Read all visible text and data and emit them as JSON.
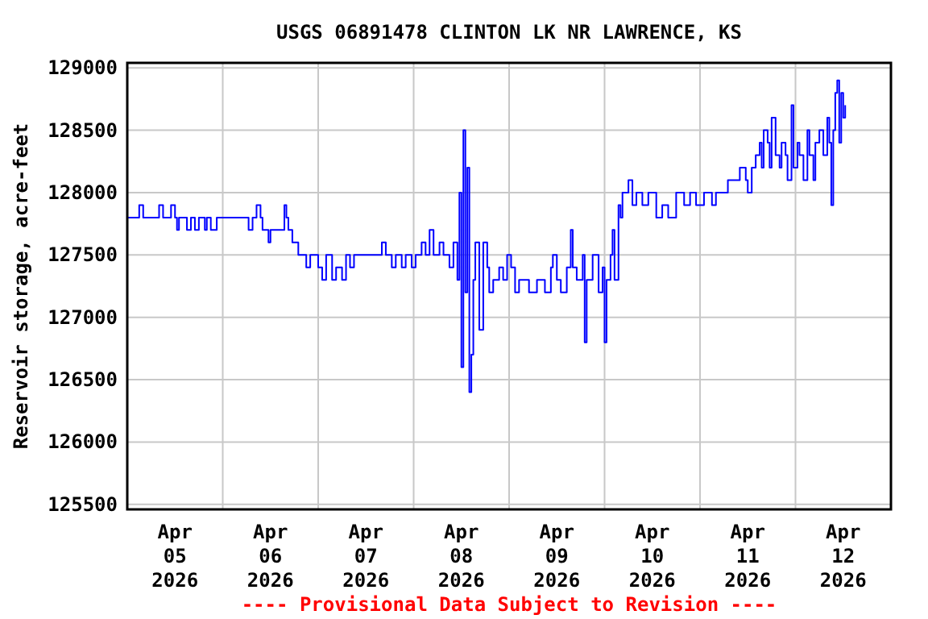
{
  "chart_data": {
    "type": "step",
    "title": "USGS 06891478 CLINTON LK NR LAWRENCE, KS",
    "ylabel": "Reservoir storage, acre-feet",
    "annotations": [
      "---- Provisional Data Subject to Revision ----"
    ],
    "grid": true,
    "xlim": [
      "2026-04-05T00:00",
      "2026-04-13T00:00"
    ],
    "xticks": [
      {
        "value": "2026-04-05T12:00",
        "label": "Apr\n05\n2026"
      },
      {
        "value": "2026-04-06T00:00",
        "label": null
      },
      {
        "value": "2026-04-06T12:00",
        "label": "Apr\n06\n2026"
      },
      {
        "value": "2026-04-07T00:00",
        "label": null
      },
      {
        "value": "2026-04-07T12:00",
        "label": "Apr\n07\n2026"
      },
      {
        "value": "2026-04-08T00:00",
        "label": null
      },
      {
        "value": "2026-04-08T12:00",
        "label": "Apr\n08\n2026"
      },
      {
        "value": "2026-04-09T00:00",
        "label": null
      },
      {
        "value": "2026-04-09T12:00",
        "label": "Apr\n09\n2026"
      },
      {
        "value": "2026-04-10T00:00",
        "label": null
      },
      {
        "value": "2026-04-10T12:00",
        "label": "Apr\n10\n2026"
      },
      {
        "value": "2026-04-11T00:00",
        "label": null
      },
      {
        "value": "2026-04-11T12:00",
        "label": "Apr\n11\n2026"
      },
      {
        "value": "2026-04-12T00:00",
        "label": null
      },
      {
        "value": "2026-04-12T12:00",
        "label": "Apr\n12\n2026"
      }
    ],
    "ylim": [
      125460,
      129040
    ],
    "yticks": [
      125500,
      126000,
      126500,
      127000,
      127500,
      128000,
      128500,
      129000
    ],
    "series": [
      {
        "color": "#0000ff",
        "x": [
          "2026-04-05T00:00",
          "2026-04-05T03:00",
          "2026-04-05T04:00",
          "2026-04-05T08:00",
          "2026-04-05T09:00",
          "2026-04-05T11:00",
          "2026-04-05T12:00",
          "2026-04-05T12:30",
          "2026-04-05T13:00",
          "2026-04-05T15:00",
          "2026-04-05T16:00",
          "2026-04-05T17:00",
          "2026-04-05T18:00",
          "2026-04-05T19:30",
          "2026-04-05T20:00",
          "2026-04-05T21:00",
          "2026-04-05T22:30",
          "2026-04-06T06:30",
          "2026-04-06T07:30",
          "2026-04-06T08:30",
          "2026-04-06T09:30",
          "2026-04-06T10:00",
          "2026-04-06T11:30",
          "2026-04-06T12:00",
          "2026-04-06T15:30",
          "2026-04-06T16:00",
          "2026-04-06T16:30",
          "2026-04-06T17:30",
          "2026-04-06T19:00",
          "2026-04-06T21:00",
          "2026-04-06T22:00",
          "2026-04-07T00:00",
          "2026-04-07T01:00",
          "2026-04-07T02:00",
          "2026-04-07T03:30",
          "2026-04-07T04:30",
          "2026-04-07T06:00",
          "2026-04-07T07:00",
          "2026-04-07T08:00",
          "2026-04-07T09:00",
          "2026-04-07T16:00",
          "2026-04-07T17:00",
          "2026-04-07T18:30",
          "2026-04-07T19:30",
          "2026-04-07T21:00",
          "2026-04-07T22:00",
          "2026-04-07T23:30",
          "2026-04-08T00:30",
          "2026-04-08T02:00",
          "2026-04-08T03:00",
          "2026-04-08T04:00",
          "2026-04-08T05:00",
          "2026-04-08T06:30",
          "2026-04-08T07:30",
          "2026-04-08T09:00",
          "2026-04-08T10:00",
          "2026-04-08T11:00",
          "2026-04-08T11:30",
          "2026-04-08T12:00",
          "2026-04-08T12:30",
          "2026-04-08T13:00",
          "2026-04-08T13:30",
          "2026-04-08T14:00",
          "2026-04-08T14:30",
          "2026-04-08T15:00",
          "2026-04-08T15:30",
          "2026-04-08T16:30",
          "2026-04-08T17:30",
          "2026-04-08T18:30",
          "2026-04-08T19:00",
          "2026-04-08T20:00",
          "2026-04-08T21:30",
          "2026-04-08T22:30",
          "2026-04-08T23:30",
          "2026-04-09T00:30",
          "2026-04-09T01:30",
          "2026-04-09T02:30",
          "2026-04-09T05:00",
          "2026-04-09T07:00",
          "2026-04-09T09:00",
          "2026-04-09T10:30",
          "2026-04-09T11:00",
          "2026-04-09T12:00",
          "2026-04-09T13:00",
          "2026-04-09T14:30",
          "2026-04-09T15:30",
          "2026-04-09T16:00",
          "2026-04-09T17:00",
          "2026-04-09T18:30",
          "2026-04-09T19:00",
          "2026-04-09T19:30",
          "2026-04-09T21:00",
          "2026-04-09T22:30",
          "2026-04-09T23:30",
          "2026-04-10T00:00",
          "2026-04-10T00:30",
          "2026-04-10T01:30",
          "2026-04-10T02:00",
          "2026-04-10T02:30",
          "2026-04-10T03:30",
          "2026-04-10T04:00",
          "2026-04-10T04:30",
          "2026-04-10T06:00",
          "2026-04-10T07:00",
          "2026-04-10T08:00",
          "2026-04-10T09:30",
          "2026-04-10T11:00",
          "2026-04-10T13:00",
          "2026-04-10T14:30",
          "2026-04-10T16:00",
          "2026-04-10T18:00",
          "2026-04-10T20:00",
          "2026-04-10T21:30",
          "2026-04-10T23:00",
          "2026-04-11T01:00",
          "2026-04-11T03:00",
          "2026-04-11T04:00",
          "2026-04-11T07:00",
          "2026-04-11T10:00",
          "2026-04-11T11:30",
          "2026-04-11T12:00",
          "2026-04-11T13:00",
          "2026-04-11T14:00",
          "2026-04-11T15:00",
          "2026-04-11T15:30",
          "2026-04-11T16:00",
          "2026-04-11T17:00",
          "2026-04-11T17:30",
          "2026-04-11T18:00",
          "2026-04-11T19:00",
          "2026-04-11T20:00",
          "2026-04-11T20:30",
          "2026-04-11T21:30",
          "2026-04-11T22:00",
          "2026-04-11T23:00",
          "2026-04-11T23:30",
          "2026-04-12T00:30",
          "2026-04-12T01:00",
          "2026-04-12T02:00",
          "2026-04-12T03:00",
          "2026-04-12T03:30",
          "2026-04-12T04:30",
          "2026-04-12T05:00",
          "2026-04-12T06:00",
          "2026-04-12T07:00",
          "2026-04-12T08:00",
          "2026-04-12T08:30",
          "2026-04-12T09:00",
          "2026-04-12T09:30",
          "2026-04-12T10:00",
          "2026-04-12T10:30",
          "2026-04-12T11:00",
          "2026-04-12T11:30",
          "2026-04-12T12:00",
          "2026-04-12T12:30"
        ],
        "values": [
          127800,
          127900,
          127800,
          127900,
          127800,
          127900,
          127800,
          127700,
          127800,
          127700,
          127800,
          127700,
          127800,
          127700,
          127800,
          127700,
          127800,
          127700,
          127800,
          127900,
          127800,
          127700,
          127600,
          127700,
          127900,
          127800,
          127700,
          127600,
          127500,
          127400,
          127500,
          127400,
          127300,
          127500,
          127300,
          127400,
          127300,
          127500,
          127400,
          127500,
          127600,
          127500,
          127400,
          127500,
          127400,
          127500,
          127400,
          127500,
          127600,
          127500,
          127700,
          127500,
          127600,
          127500,
          127400,
          127600,
          127300,
          128000,
          126600,
          128500,
          127200,
          128200,
          126400,
          126700,
          127300,
          127600,
          126900,
          127600,
          127400,
          127200,
          127300,
          127400,
          127300,
          127500,
          127400,
          127200,
          127300,
          127200,
          127300,
          127200,
          127400,
          127500,
          127300,
          127200,
          127400,
          127700,
          127400,
          127300,
          127500,
          126800,
          127300,
          127500,
          127200,
          127400,
          126800,
          127300,
          127500,
          127700,
          127300,
          127900,
          127800,
          128000,
          128100,
          127900,
          128000,
          127900,
          128000,
          127800,
          127900,
          127800,
          128000,
          127900,
          128000,
          127900,
          128000,
          127900,
          128000,
          128100,
          128200,
          128100,
          128000,
          128200,
          128300,
          128400,
          128200,
          128500,
          128400,
          128200,
          128600,
          128300,
          128200,
          128400,
          128300,
          128100,
          128700,
          128200,
          128400,
          128300,
          128100,
          128500,
          128300,
          128100,
          128400,
          128500,
          128300,
          128600,
          128400,
          127900,
          128500,
          128800,
          128900,
          128400,
          128800,
          128600,
          128700
        ]
      }
    ]
  }
}
